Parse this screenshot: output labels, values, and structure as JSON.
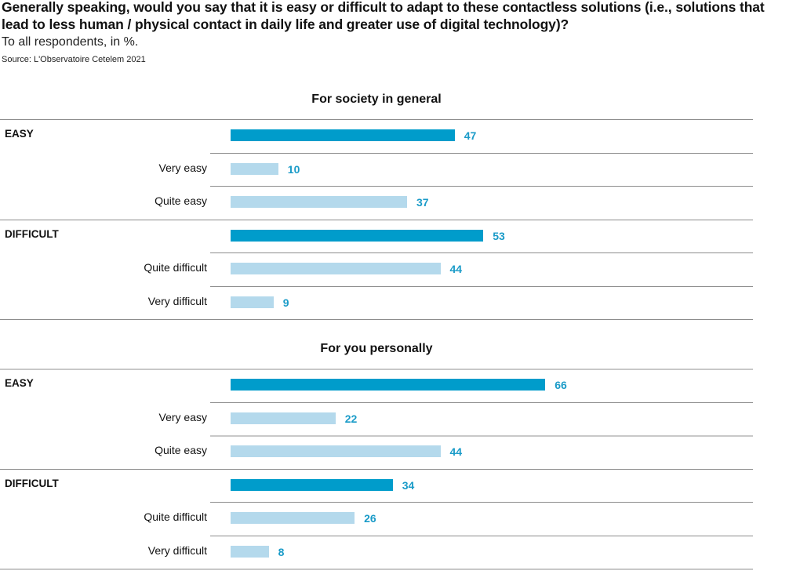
{
  "title": "Generally speaking, would you say that it is easy or difficult to adapt to these contactless solutions (i.e., solutions that lead to less human / physical contact in daily life and greater use of digital technology)?",
  "subtitle": "To all respondents, in %.",
  "source": "Source: L'Observatoire Cetelem 2021",
  "colors": {
    "group_bar": "#009ccb",
    "sub_bar": "#b4d9ec",
    "value_label": "#1a9bc8"
  },
  "chart_data": [
    {
      "type": "bar",
      "orientation": "horizontal",
      "title": "For society in general",
      "xlabel": "",
      "ylabel": "",
      "xlim": [
        0,
        100
      ],
      "categories": [
        "EASY",
        "Very easy",
        "Quite easy",
        "DIFFICULT",
        "Quite difficult",
        "Very difficult"
      ],
      "values": [
        47,
        10,
        37,
        53,
        44,
        9
      ],
      "is_group": [
        true,
        false,
        false,
        true,
        false,
        false
      ]
    },
    {
      "type": "bar",
      "orientation": "horizontal",
      "title": "For you personally",
      "xlabel": "",
      "ylabel": "",
      "xlim": [
        0,
        100
      ],
      "categories": [
        "EASY",
        "Very easy",
        "Quite easy",
        "DIFFICULT",
        "Quite difficult",
        "Very difficult"
      ],
      "values": [
        66,
        22,
        44,
        34,
        26,
        8
      ],
      "is_group": [
        true,
        false,
        false,
        true,
        false,
        false
      ]
    }
  ]
}
